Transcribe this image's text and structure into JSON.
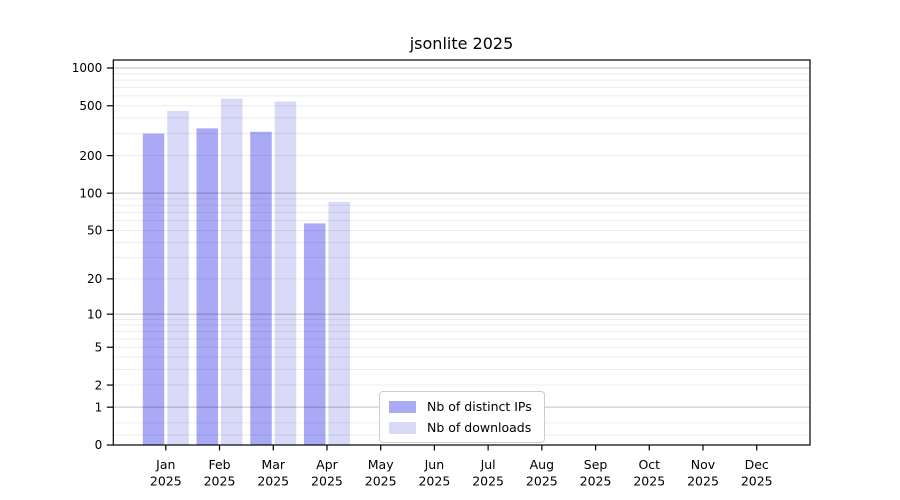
{
  "title": "jsonlite 2025",
  "chart_data": {
    "type": "bar",
    "title": "jsonlite 2025",
    "categories": [
      "Jan 2025",
      "Feb 2025",
      "Mar 2025",
      "Apr 2025",
      "May 2025",
      "Jun 2025",
      "Jul 2025",
      "Aug 2025",
      "Sep 2025",
      "Oct 2025",
      "Nov 2025",
      "Dec 2025"
    ],
    "series": [
      {
        "name": "Nb of distinct IPs",
        "color": "#a9a9f6",
        "values": [
          300,
          330,
          310,
          57,
          0,
          0,
          0,
          0,
          0,
          0,
          0,
          0
        ]
      },
      {
        "name": "Nb of downloads",
        "color": "#d9d9f8",
        "values": [
          455,
          570,
          540,
          85,
          0,
          0,
          0,
          0,
          0,
          0,
          0,
          0
        ]
      }
    ],
    "xlabel": "",
    "ylabel": "",
    "y_scale": "log1p",
    "ylim": [
      0,
      1000
    ],
    "y_ticks": [
      0,
      1,
      2,
      5,
      10,
      20,
      50,
      100,
      200,
      500,
      1000
    ],
    "grid": "horizontal",
    "legend_position": "lower-center",
    "colors": {
      "axis": "#000000",
      "major_grid": "rgba(0,0,0,0.24)",
      "minor_grid": "rgba(0,0,0,0.075)",
      "text": "#000000"
    }
  }
}
